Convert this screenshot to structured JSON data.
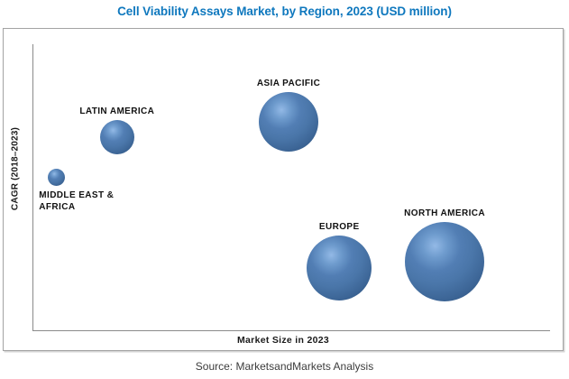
{
  "page": {
    "title": "Cell Viability Assays Market, by Region, 2023 (USD million)",
    "source_note": "Source: MarketsandMarkets Analysis"
  },
  "chart": {
    "xlabel": "Market Size in 2023",
    "ylabel": "CAGR (2018–2023)"
  },
  "chart_data": {
    "type": "bubble",
    "title": "Cell Viability Assays Market, by Region, 2023 (USD million)",
    "xlabel": "Market Size in 2023",
    "ylabel": "CAGR (2018–2023)",
    "x_axis_numeric_ticks": [],
    "y_axis_numeric_ticks": [],
    "grid": false,
    "legend": false,
    "points": [
      {
        "label": "MIDDLE EAST & AFRICA",
        "label_lines": [
          "MIDDLE EAST &",
          "AFRICA"
        ],
        "label_position": "below-left",
        "x_rel": 0.045,
        "y_rel": 0.536,
        "radius_px": 9.5
      },
      {
        "label": "LATIN AMERICA",
        "label_lines": [
          "LATIN AMERICA"
        ],
        "label_position": "above",
        "x_rel": 0.162,
        "y_rel": 0.675,
        "radius_px": 19
      },
      {
        "label": "ASIA PACIFIC",
        "label_lines": [
          "ASIA PACIFIC"
        ],
        "label_position": "above",
        "x_rel": 0.494,
        "y_rel": 0.729,
        "radius_px": 33
      },
      {
        "label": "EUROPE",
        "label_lines": [
          "EUROPE"
        ],
        "label_position": "above",
        "x_rel": 0.592,
        "y_rel": 0.218,
        "radius_px": 36
      },
      {
        "label": "NORTH AMERICA",
        "label_lines": [
          "NORTH AMERICA"
        ],
        "label_position": "above",
        "x_rel": 0.796,
        "y_rel": 0.24,
        "radius_px": 44
      }
    ]
  },
  "colors": {
    "title_blue": "#0f78be",
    "bubble_highlight": "#93b9e6",
    "bubble_main": "#4a76a9",
    "bubble_dark": "#2b4a72",
    "axis_gray": "#8a8a8a",
    "border_gray": "#a3a3a3"
  }
}
